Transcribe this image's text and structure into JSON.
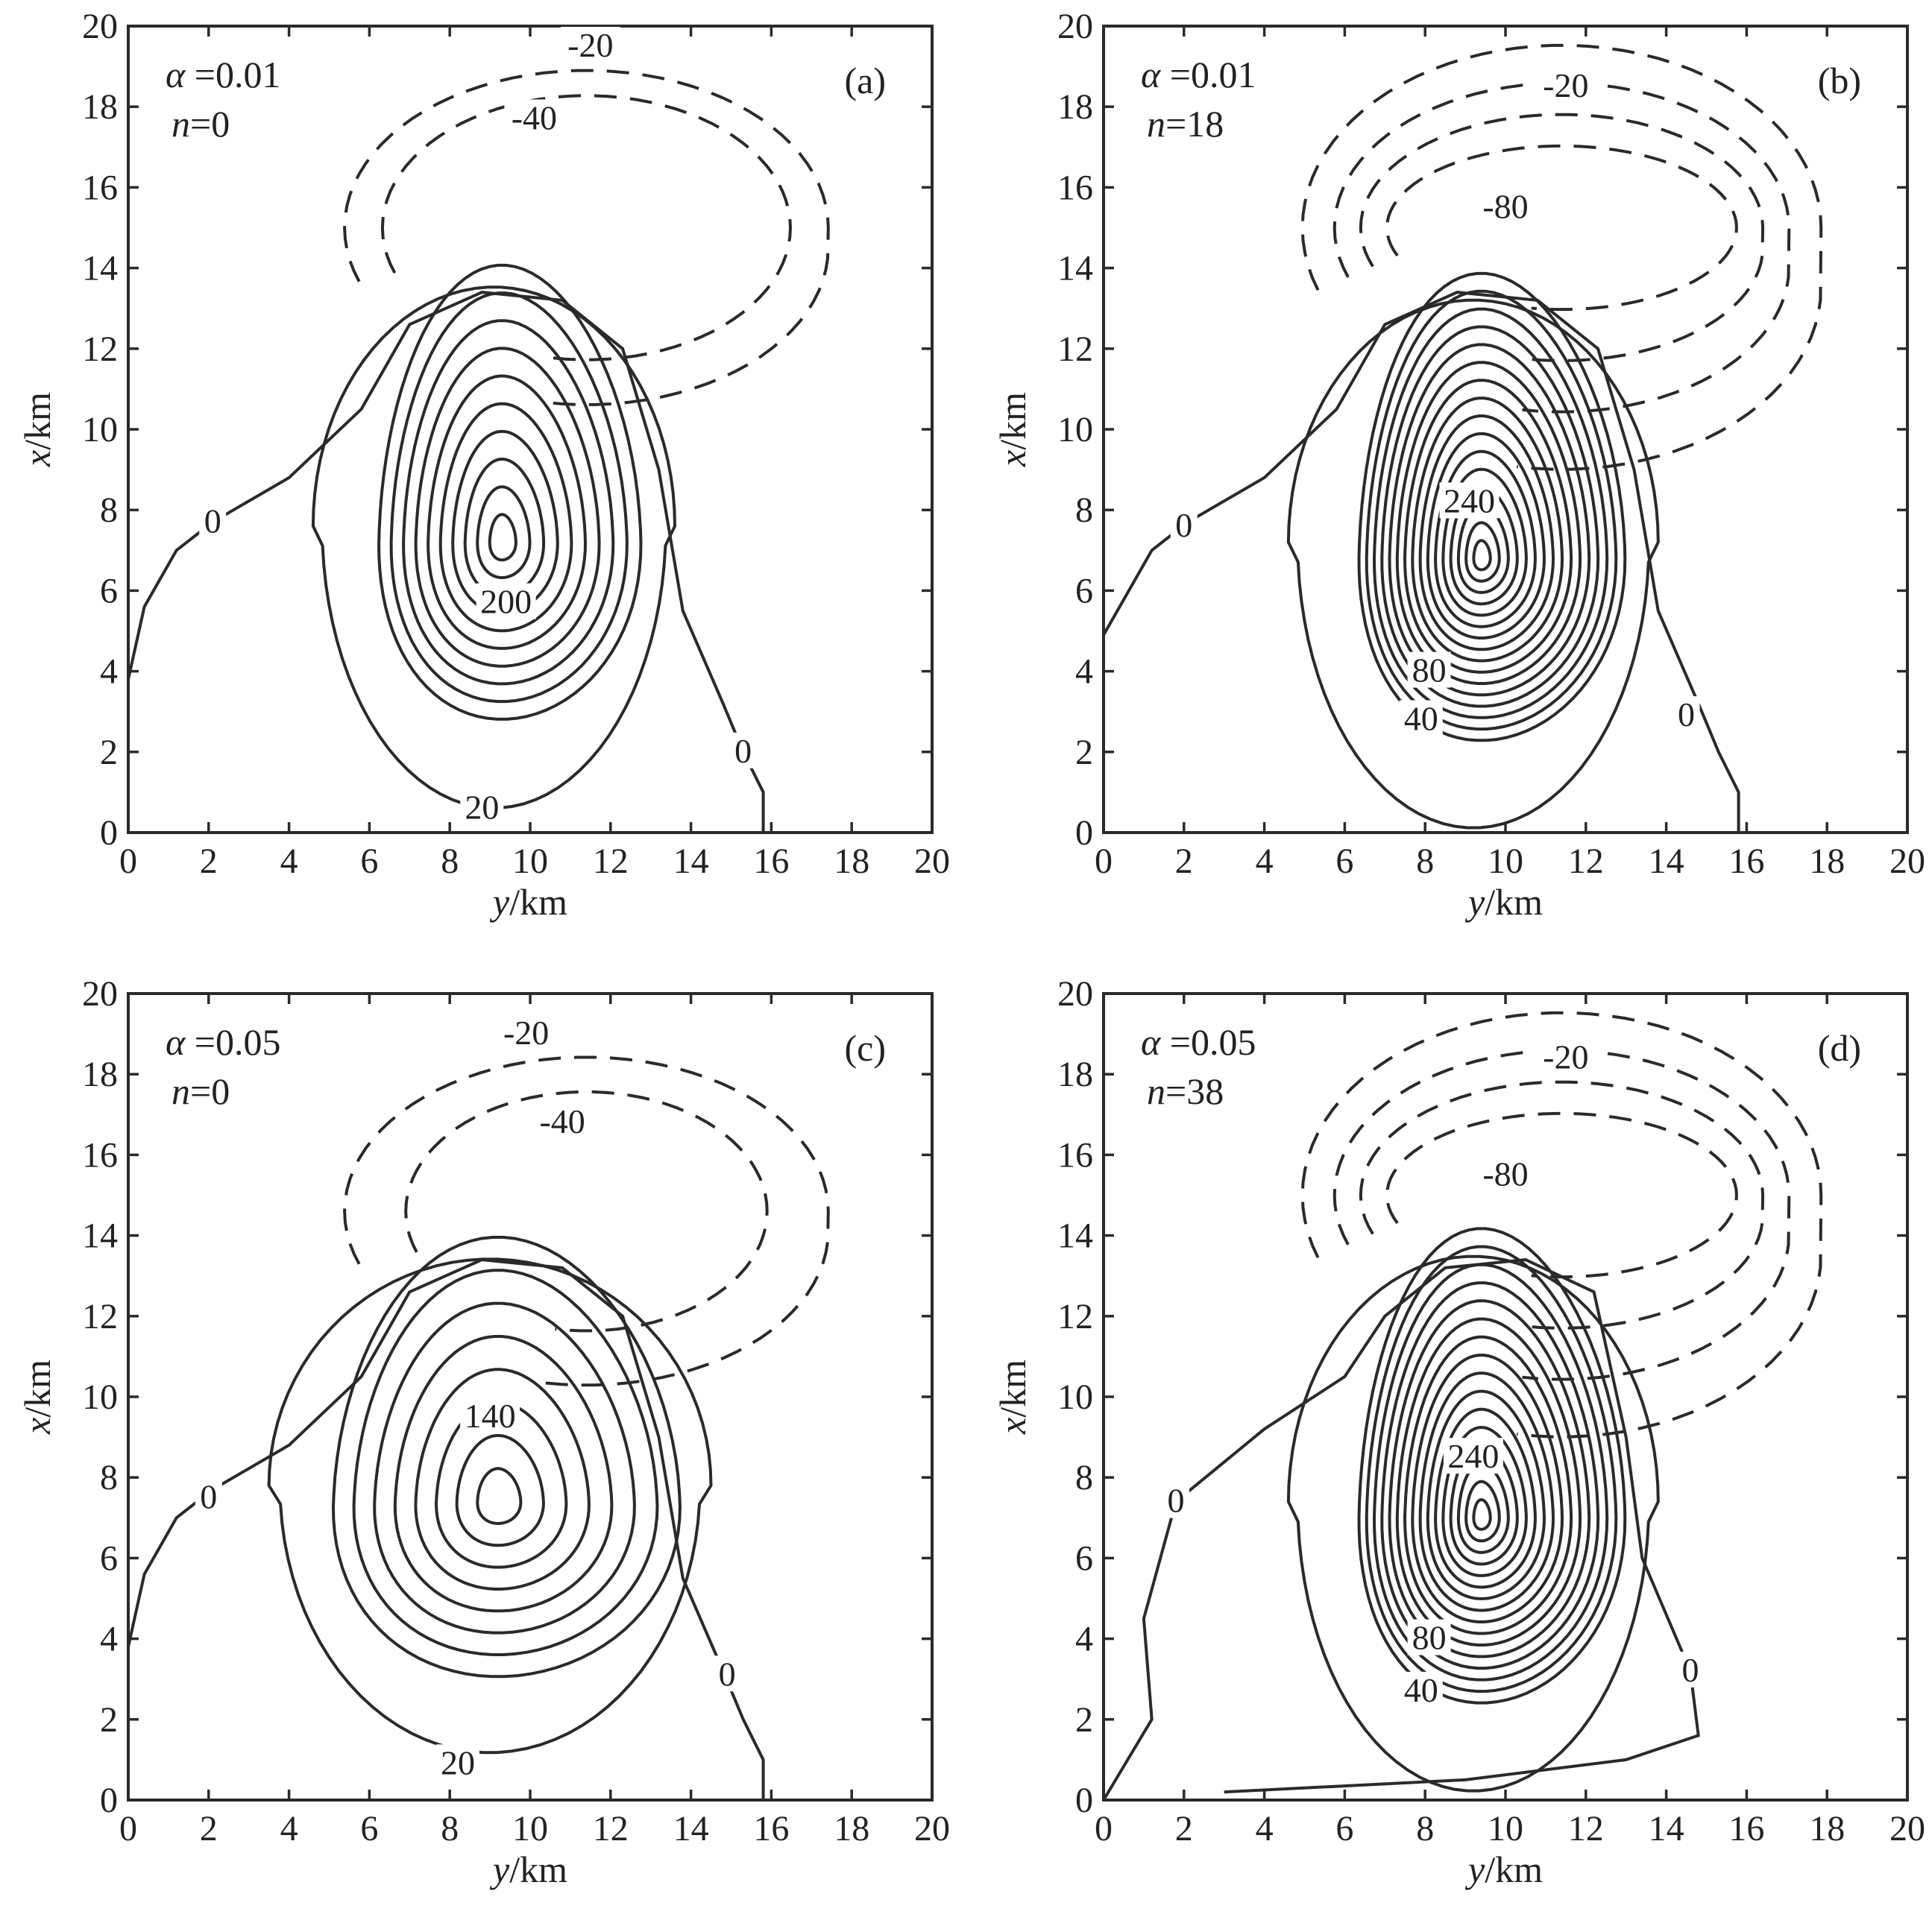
{
  "chart_data": [
    {
      "type": "contour",
      "panel": "(a)",
      "param_alpha": "α =0.01",
      "param_n": "n=0",
      "xlabel": "y/km",
      "ylabel": "x/km",
      "xlim": [
        0,
        20
      ],
      "ylim": [
        0,
        20
      ],
      "xticks": [
        0,
        2,
        4,
        6,
        8,
        10,
        12,
        14,
        16,
        18,
        20
      ],
      "yticks": [
        0,
        2,
        4,
        6,
        8,
        10,
        12,
        14,
        16,
        18,
        20
      ],
      "positive_center": [
        9.3,
        7.2
      ],
      "positive_peak_approx": 210,
      "negative_center": [
        10.5,
        15.2
      ],
      "contour_interval": 20,
      "contour_labels": [
        {
          "text": "-20",
          "at": [
            11.5,
            19.5
          ]
        },
        {
          "text": "-40",
          "at": [
            10.1,
            17.7
          ]
        },
        {
          "text": "0",
          "at": [
            2.1,
            7.7
          ]
        },
        {
          "text": "0",
          "at": [
            15.3,
            2.0
          ]
        },
        {
          "text": "200",
          "at": [
            9.4,
            5.7
          ]
        },
        {
          "text": "20",
          "at": [
            8.8,
            0.6
          ]
        }
      ]
    },
    {
      "type": "contour",
      "panel": "(b)",
      "param_alpha": "α =0.01",
      "param_n": "n=18",
      "xlabel": "y/km",
      "ylabel": "x/km",
      "xlim": [
        0,
        20
      ],
      "ylim": [
        0,
        20
      ],
      "xticks": [
        0,
        2,
        4,
        6,
        8,
        10,
        12,
        14,
        16,
        18,
        20
      ],
      "yticks": [
        0,
        2,
        4,
        6,
        8,
        10,
        12,
        14,
        16,
        18,
        20
      ],
      "positive_center": [
        9.4,
        6.8
      ],
      "positive_peak_approx": 330,
      "negative_center": [
        10.5,
        15.2
      ],
      "contour_interval": 20,
      "contour_labels": [
        {
          "text": "-20",
          "at": [
            11.5,
            18.5
          ]
        },
        {
          "text": "-80",
          "at": [
            10.0,
            15.5
          ]
        },
        {
          "text": "0",
          "at": [
            2.0,
            7.6
          ]
        },
        {
          "text": "0",
          "at": [
            14.5,
            2.9
          ]
        },
        {
          "text": "240",
          "at": [
            9.1,
            8.2
          ]
        },
        {
          "text": "80",
          "at": [
            8.1,
            4.0
          ]
        },
        {
          "text": "40",
          "at": [
            7.9,
            2.8
          ]
        }
      ]
    },
    {
      "type": "contour",
      "panel": "(c)",
      "param_alpha": "α =0.05",
      "param_n": "n=0",
      "xlabel": "y/km",
      "ylabel": "x/km",
      "xlim": [
        0,
        20
      ],
      "ylim": [
        0,
        20
      ],
      "xticks": [
        0,
        2,
        4,
        6,
        8,
        10,
        12,
        14,
        16,
        18,
        20
      ],
      "yticks": [
        0,
        2,
        4,
        6,
        8,
        10,
        12,
        14,
        16,
        18,
        20
      ],
      "positive_center": [
        9.2,
        7.4
      ],
      "positive_peak_approx": 150,
      "negative_center": [
        10.5,
        14.8
      ],
      "contour_interval": 20,
      "contour_labels": [
        {
          "text": "-20",
          "at": [
            9.9,
            19.0
          ]
        },
        {
          "text": "-40",
          "at": [
            10.8,
            16.8
          ]
        },
        {
          "text": "0",
          "at": [
            2.0,
            7.5
          ]
        },
        {
          "text": "0",
          "at": [
            14.9,
            3.1
          ]
        },
        {
          "text": "140",
          "at": [
            9.0,
            9.5
          ]
        },
        {
          "text": "20",
          "at": [
            8.2,
            0.9
          ]
        }
      ]
    },
    {
      "type": "contour",
      "panel": "(d)",
      "param_alpha": "α =0.05",
      "param_n": "n=38",
      "xlabel": "y/km",
      "ylabel": "x/km",
      "xlim": [
        0,
        20
      ],
      "ylim": [
        0,
        20
      ],
      "xticks": [
        0,
        2,
        4,
        6,
        8,
        10,
        12,
        14,
        16,
        18,
        20
      ],
      "yticks": [
        0,
        2,
        4,
        6,
        8,
        10,
        12,
        14,
        16,
        18,
        20
      ],
      "positive_center": [
        9.4,
        7.0
      ],
      "positive_peak_approx": 330,
      "negative_center": [
        10.5,
        15.2
      ],
      "contour_interval": 20,
      "contour_labels": [
        {
          "text": "-20",
          "at": [
            11.5,
            18.4
          ]
        },
        {
          "text": "-80",
          "at": [
            10.0,
            15.5
          ]
        },
        {
          "text": "0",
          "at": [
            1.8,
            7.4
          ]
        },
        {
          "text": "0",
          "at": [
            14.6,
            3.2
          ]
        },
        {
          "text": "240",
          "at": [
            9.2,
            8.5
          ]
        },
        {
          "text": "80",
          "at": [
            8.1,
            4.0
          ]
        },
        {
          "text": "40",
          "at": [
            7.9,
            2.7
          ]
        }
      ]
    }
  ]
}
